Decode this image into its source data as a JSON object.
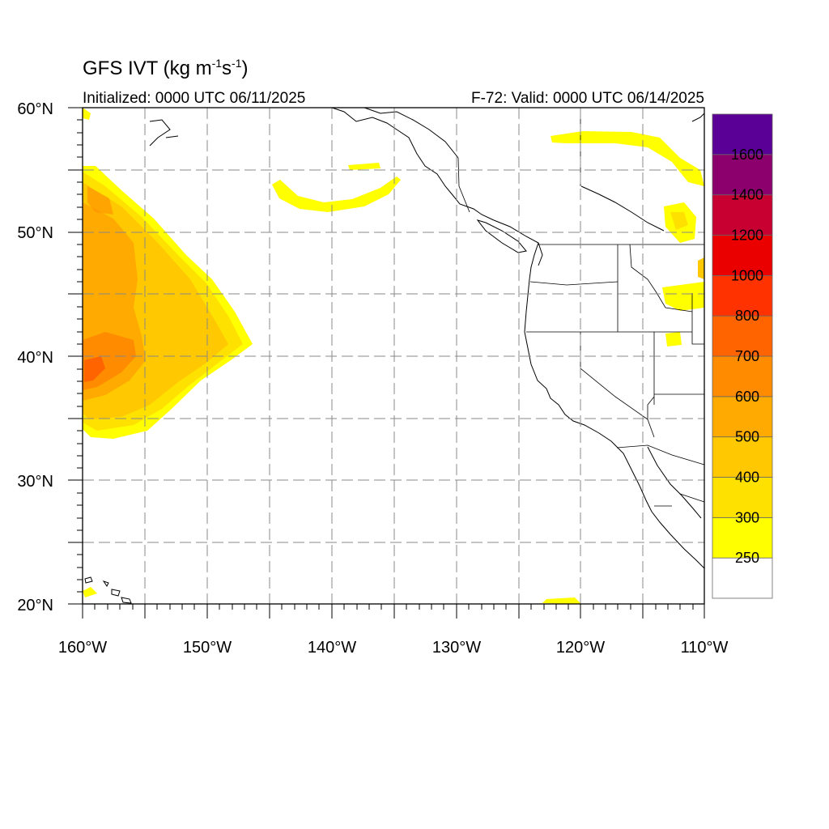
{
  "title": {
    "main": "GFS IVT (kg m",
    "exp1": "-1",
    "mid": "s",
    "exp2": "-1",
    "close": ")"
  },
  "init_text": "Initialized: 0000 UTC 06/11/2025",
  "valid_text": "F-72: Valid: 0000 UTC 06/14/2025",
  "map": {
    "lon_range": [
      -160,
      -110
    ],
    "lat_range": [
      20,
      60
    ],
    "lon_labels": [
      "160°W",
      "150°W",
      "140°W",
      "130°W",
      "120°W",
      "110°W"
    ],
    "lat_labels": [
      "20°N",
      "30°N",
      "40°N",
      "50°N",
      "60°N"
    ],
    "gridlines": "dashed every 5°"
  },
  "colorbar": {
    "levels": [
      "250",
      "300",
      "400",
      "500",
      "600",
      "700",
      "800",
      "1000",
      "1200",
      "1400",
      "1600"
    ],
    "colors": [
      "#ffffff",
      "#ffff00",
      "#ffe100",
      "#ffc800",
      "#ffaa00",
      "#ff8c00",
      "#ff6400",
      "#ff3200",
      "#eb0000",
      "#c80032",
      "#8c006e",
      "#5a0096"
    ]
  }
}
